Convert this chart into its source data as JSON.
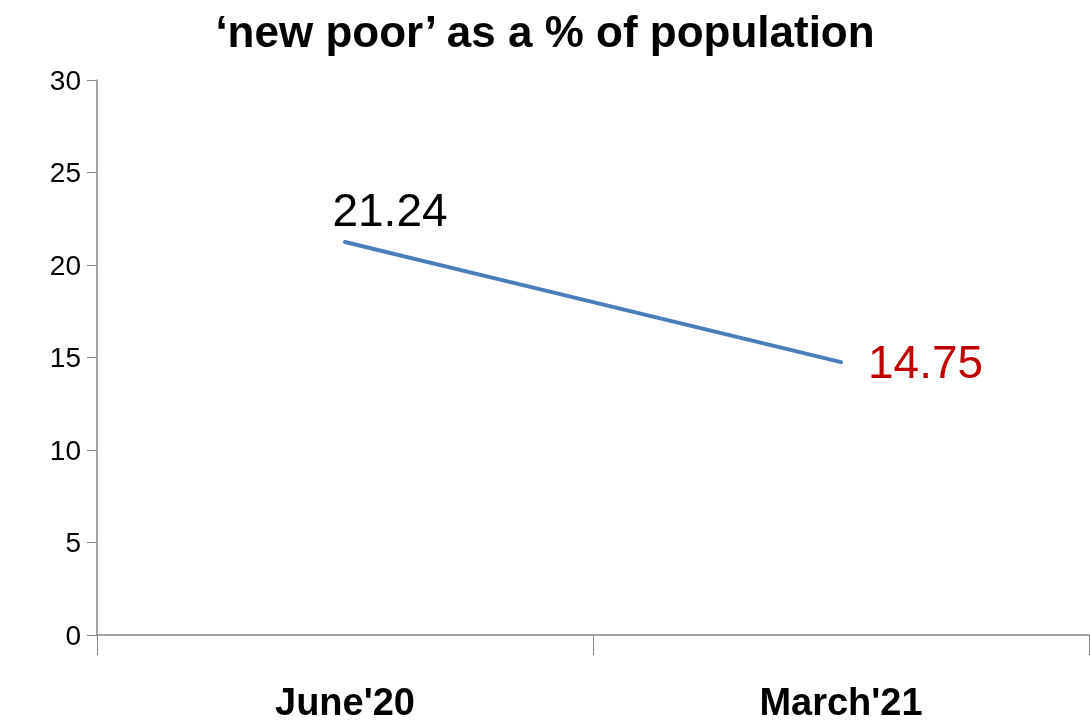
{
  "chart_data": {
    "type": "line",
    "title": "‘new poor’ as a % of population",
    "categories": [
      "June'20",
      "March'21"
    ],
    "series": [
      {
        "color": "#4a7ebb",
        "values": [
          21.24,
          14.75
        ]
      }
    ],
    "ylim": [
      0,
      30
    ],
    "yticks": [
      0,
      5,
      10,
      15,
      20,
      25,
      30
    ],
    "grid": false,
    "marker": "none",
    "line_style": "solid",
    "data_labels": true
  }
}
